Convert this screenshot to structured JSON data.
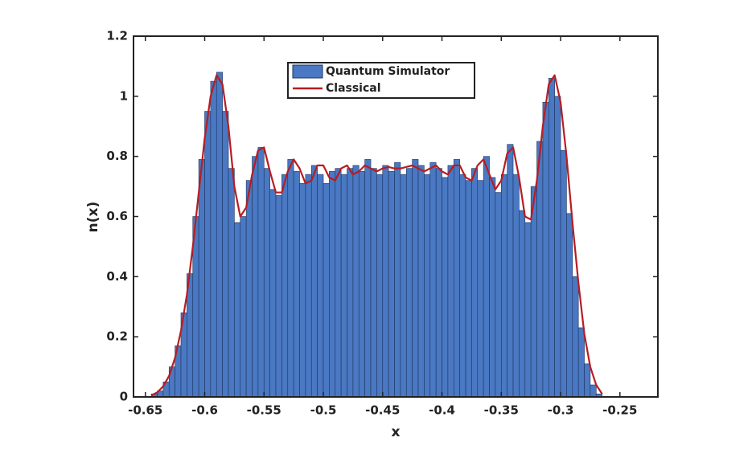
{
  "chart_data": {
    "type": "histogram",
    "xlabel": "x",
    "ylabel": "n(x)",
    "xlim": [
      -0.66,
      -0.218
    ],
    "ylim": [
      0,
      1.2
    ],
    "xticks": [
      -0.65,
      -0.6,
      -0.55,
      -0.5,
      -0.45,
      -0.4,
      -0.35,
      -0.3,
      -0.25
    ],
    "yticks": [
      0,
      0.2,
      0.4,
      0.6,
      0.8,
      1,
      1.2
    ],
    "legend": "top-center",
    "bins": [
      -0.645,
      -0.64,
      -0.635,
      -0.63,
      -0.625,
      -0.62,
      -0.615,
      -0.61,
      -0.605,
      -0.6,
      -0.595,
      -0.59,
      -0.585,
      -0.58,
      -0.575,
      -0.57,
      -0.565,
      -0.56,
      -0.555,
      -0.55,
      -0.545,
      -0.54,
      -0.535,
      -0.53,
      -0.525,
      -0.52,
      -0.515,
      -0.51,
      -0.505,
      -0.5,
      -0.495,
      -0.49,
      -0.485,
      -0.48,
      -0.475,
      -0.47,
      -0.465,
      -0.46,
      -0.455,
      -0.45,
      -0.445,
      -0.44,
      -0.435,
      -0.43,
      -0.425,
      -0.42,
      -0.415,
      -0.41,
      -0.405,
      -0.4,
      -0.395,
      -0.39,
      -0.385,
      -0.38,
      -0.375,
      -0.37,
      -0.365,
      -0.36,
      -0.355,
      -0.35,
      -0.345,
      -0.34,
      -0.335,
      -0.33,
      -0.325,
      -0.32,
      -0.315,
      -0.31,
      -0.305,
      -0.3,
      -0.295,
      -0.29,
      -0.285,
      -0.28,
      -0.275,
      -0.27,
      -0.265
    ],
    "series": [
      {
        "name": "Quantum Simulator",
        "type": "histogram",
        "color": "#4a78c2",
        "edgecolor": "#1d3560",
        "values": [
          0.01,
          0.02,
          0.05,
          0.1,
          0.17,
          0.28,
          0.41,
          0.6,
          0.79,
          0.95,
          1.05,
          1.08,
          0.95,
          0.76,
          0.58,
          0.6,
          0.72,
          0.8,
          0.83,
          0.76,
          0.69,
          0.67,
          0.74,
          0.79,
          0.75,
          0.71,
          0.74,
          0.77,
          0.74,
          0.71,
          0.75,
          0.76,
          0.74,
          0.76,
          0.77,
          0.75,
          0.79,
          0.76,
          0.74,
          0.77,
          0.75,
          0.78,
          0.74,
          0.76,
          0.79,
          0.77,
          0.74,
          0.78,
          0.76,
          0.73,
          0.77,
          0.79,
          0.74,
          0.72,
          0.76,
          0.72,
          0.8,
          0.73,
          0.68,
          0.74,
          0.84,
          0.74,
          0.62,
          0.58,
          0.7,
          0.85,
          0.98,
          1.06,
          1.0,
          0.82,
          0.61,
          0.4,
          0.23,
          0.11,
          0.04,
          0.01
        ]
      },
      {
        "name": "Classical",
        "type": "line",
        "color": "#b81c22",
        "x": [
          -0.645,
          -0.64,
          -0.635,
          -0.63,
          -0.625,
          -0.62,
          -0.615,
          -0.61,
          -0.605,
          -0.6,
          -0.595,
          -0.59,
          -0.585,
          -0.58,
          -0.575,
          -0.57,
          -0.565,
          -0.56,
          -0.555,
          -0.55,
          -0.545,
          -0.54,
          -0.535,
          -0.53,
          -0.525,
          -0.52,
          -0.515,
          -0.51,
          -0.505,
          -0.5,
          -0.495,
          -0.49,
          -0.485,
          -0.48,
          -0.475,
          -0.47,
          -0.465,
          -0.46,
          -0.455,
          -0.45,
          -0.445,
          -0.44,
          -0.435,
          -0.43,
          -0.425,
          -0.42,
          -0.415,
          -0.41,
          -0.405,
          -0.4,
          -0.395,
          -0.39,
          -0.385,
          -0.38,
          -0.375,
          -0.37,
          -0.365,
          -0.36,
          -0.355,
          -0.35,
          -0.345,
          -0.34,
          -0.335,
          -0.33,
          -0.325,
          -0.32,
          -0.315,
          -0.31,
          -0.305,
          -0.3,
          -0.295,
          -0.29,
          -0.285,
          -0.28,
          -0.275,
          -0.27,
          -0.265
        ],
        "values": [
          0.005,
          0.015,
          0.035,
          0.07,
          0.13,
          0.22,
          0.34,
          0.5,
          0.68,
          0.86,
          1.0,
          1.07,
          1.04,
          0.9,
          0.7,
          0.6,
          0.63,
          0.74,
          0.82,
          0.83,
          0.75,
          0.68,
          0.68,
          0.75,
          0.79,
          0.76,
          0.71,
          0.72,
          0.77,
          0.77,
          0.73,
          0.72,
          0.76,
          0.77,
          0.74,
          0.75,
          0.77,
          0.76,
          0.75,
          0.76,
          0.765,
          0.76,
          0.76,
          0.765,
          0.77,
          0.76,
          0.75,
          0.76,
          0.77,
          0.75,
          0.74,
          0.77,
          0.77,
          0.73,
          0.72,
          0.77,
          0.79,
          0.74,
          0.69,
          0.72,
          0.81,
          0.83,
          0.73,
          0.6,
          0.59,
          0.72,
          0.9,
          1.04,
          1.07,
          0.98,
          0.8,
          0.58,
          0.38,
          0.21,
          0.1,
          0.04,
          0.01
        ]
      }
    ]
  }
}
